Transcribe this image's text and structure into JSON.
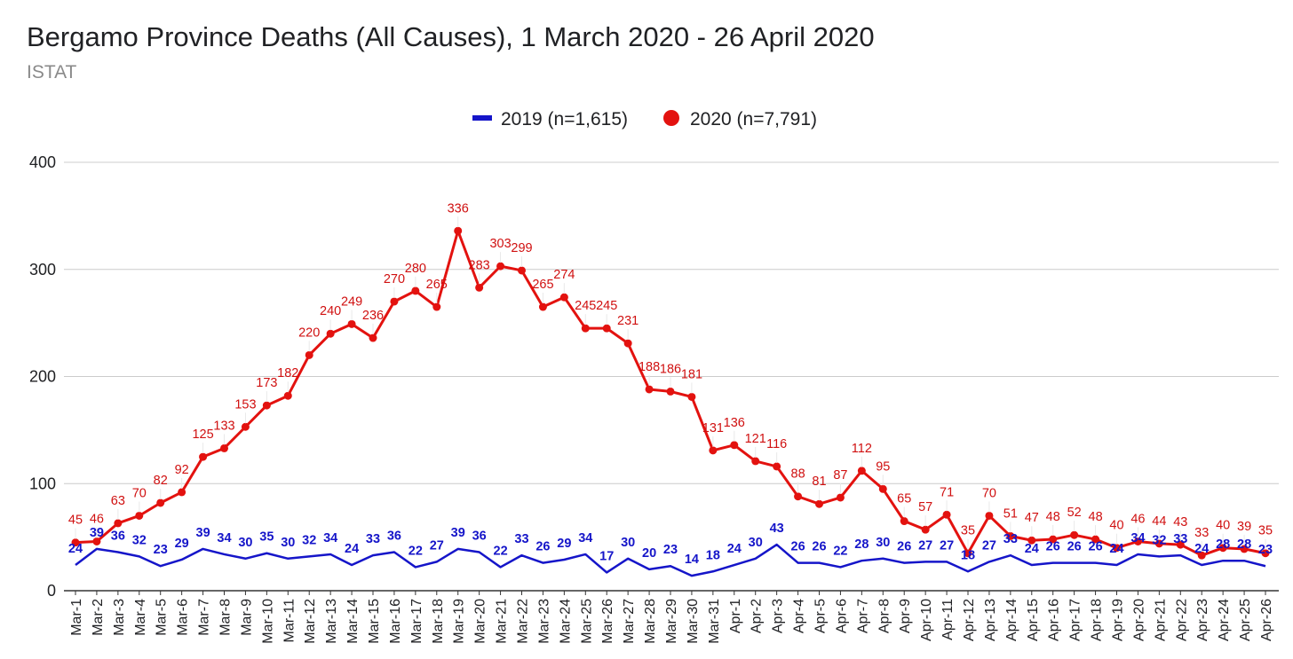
{
  "chart_data": {
    "type": "line",
    "title": "Bergamo Province Deaths (All Causes), 1 March 2020 - 26 April 2020",
    "subtitle": "ISTAT",
    "legend_position": "top",
    "ylim": [
      0,
      400
    ],
    "yticks": [
      0,
      100,
      200,
      300,
      400
    ],
    "grid": true,
    "categories": [
      "Mar-1",
      "Mar-2",
      "Mar-3",
      "Mar-4",
      "Mar-5",
      "Mar-6",
      "Mar-7",
      "Mar-8",
      "Mar-9",
      "Mar-10",
      "Mar-11",
      "Mar-12",
      "Mar-13",
      "Mar-14",
      "Mar-15",
      "Mar-16",
      "Mar-17",
      "Mar-18",
      "Mar-19",
      "Mar-20",
      "Mar-21",
      "Mar-22",
      "Mar-23",
      "Mar-24",
      "Mar-25",
      "Mar-26",
      "Mar-27",
      "Mar-28",
      "Mar-29",
      "Mar-30",
      "Mar-31",
      "Apr-1",
      "Apr-2",
      "Apr-3",
      "Apr-4",
      "Apr-5",
      "Apr-6",
      "Apr-7",
      "Apr-8",
      "Apr-9",
      "Apr-10",
      "Apr-11",
      "Apr-12",
      "Apr-13",
      "Apr-14",
      "Apr-15",
      "Apr-16",
      "Apr-17",
      "Apr-18",
      "Apr-19",
      "Apr-20",
      "Apr-21",
      "Apr-22",
      "Apr-23",
      "Apr-24",
      "Apr-25",
      "Apr-26"
    ],
    "series": [
      {
        "name": "2019 (n=1,615)",
        "color": "#1515c9",
        "marker": "none",
        "values": [
          24,
          39,
          36,
          32,
          23,
          29,
          39,
          34,
          30,
          35,
          30,
          32,
          34,
          24,
          33,
          36,
          22,
          27,
          39,
          36,
          22,
          33,
          26,
          29,
          34,
          17,
          30,
          20,
          23,
          14,
          18,
          24,
          30,
          43,
          26,
          26,
          22,
          28,
          30,
          26,
          27,
          27,
          18,
          27,
          33,
          24,
          26,
          26,
          26,
          24,
          34,
          32,
          33,
          24,
          28,
          28,
          23
        ]
      },
      {
        "name": "2020 (n=7,791)",
        "color": "#e3120f",
        "marker": "circle",
        "values": [
          45,
          46,
          63,
          70,
          82,
          92,
          125,
          133,
          153,
          173,
          182,
          220,
          240,
          249,
          236,
          270,
          280,
          265,
          336,
          283,
          303,
          299,
          265,
          274,
          245,
          245,
          231,
          188,
          186,
          181,
          131,
          136,
          121,
          116,
          88,
          81,
          87,
          112,
          95,
          65,
          57,
          71,
          35,
          70,
          51,
          47,
          48,
          52,
          48,
          40,
          46,
          44,
          43,
          33,
          40,
          39,
          35
        ]
      }
    ]
  }
}
